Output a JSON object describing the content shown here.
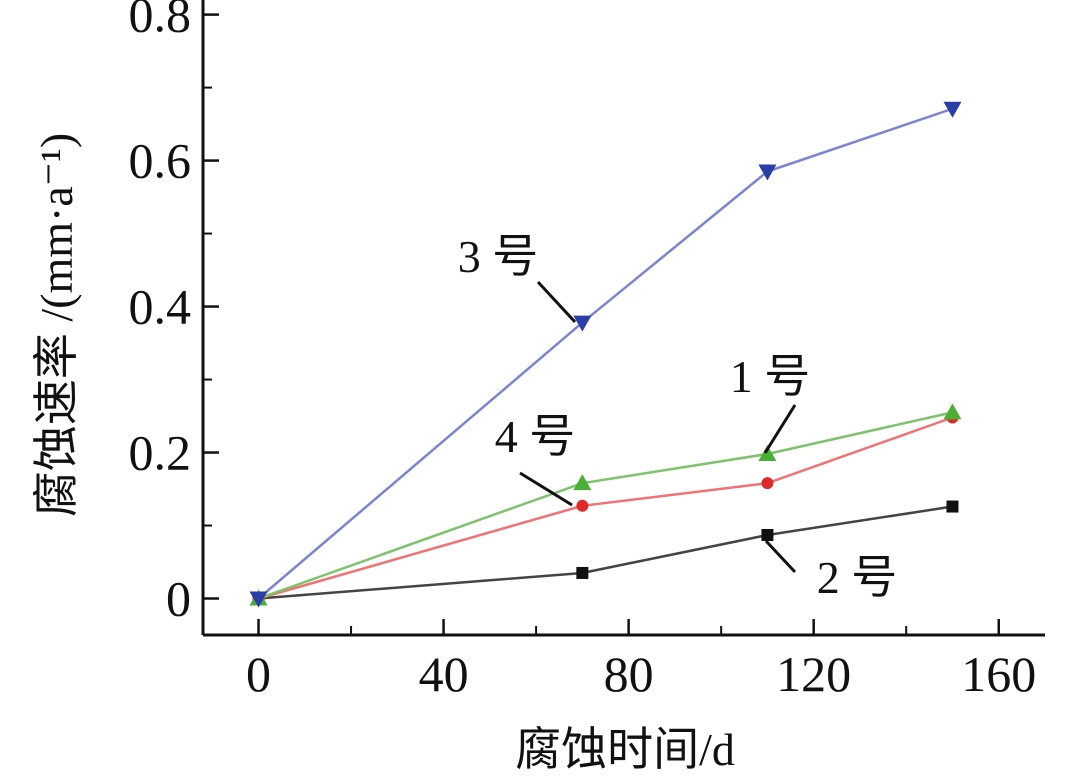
{
  "chart_data": {
    "type": "line",
    "xlabel": "腐蚀时间/d",
    "ylabel": "腐蚀速率 /(mm·a⁻¹)",
    "xlim": [
      -12,
      170
    ],
    "ylim": [
      -0.05,
      0.82
    ],
    "xticks": [
      0,
      40,
      80,
      120,
      160
    ],
    "xtick_labels": [
      "0",
      "40",
      "80",
      "120",
      "160"
    ],
    "yticks": [
      0,
      0.2,
      0.4,
      0.6,
      0.8
    ],
    "ytick_labels": [
      "0",
      "0.2",
      "0.4",
      "0.6",
      "0.8"
    ],
    "grid": false,
    "legend": "none",
    "series": [
      {
        "name": "1 号",
        "x": [
          0,
          70,
          110,
          150
        ],
        "values": [
          0,
          0.158,
          0.198,
          0.255
        ],
        "color": "#7cc46a",
        "marker": "triangle-up"
      },
      {
        "name": "2 号",
        "x": [
          0,
          70,
          110,
          150
        ],
        "values": [
          0,
          0.035,
          0.087,
          0.126
        ],
        "color": "#444444",
        "marker": "square"
      },
      {
        "name": "3 号",
        "x": [
          0,
          70,
          110,
          150
        ],
        "values": [
          0,
          0.378,
          0.585,
          0.671
        ],
        "color": "#7b83d6",
        "marker": "triangle-down"
      },
      {
        "name": "4 号",
        "x": [
          0,
          70,
          110,
          150
        ],
        "values": [
          0,
          0.127,
          0.158,
          0.248
        ],
        "color": "#f07272",
        "marker": "circle"
      }
    ]
  },
  "style": {
    "axis_color": "#111111",
    "marker_colors": {
      "1 号": "#4caf35",
      "2 号": "#111111",
      "3 号": "#2b3ea8",
      "4 号": "#e02a2a"
    }
  }
}
